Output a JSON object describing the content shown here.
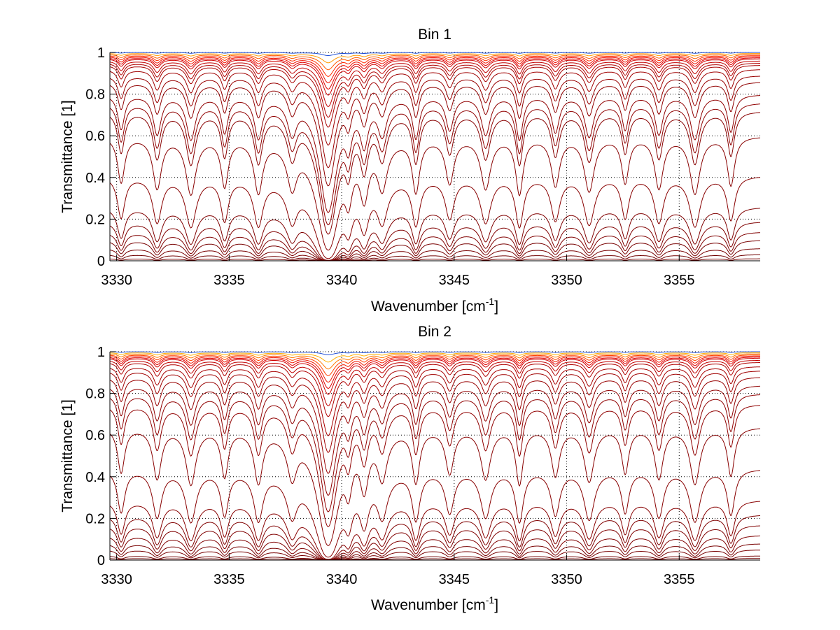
{
  "chart_data": [
    {
      "type": "line",
      "title": "Bin 1",
      "xlabel": "Wavenumber [cm",
      "xlabel_sup": "-1",
      "xlabel_tail": "]",
      "ylabel": "Transmittance [1]",
      "xlim": [
        3329.7,
        3358.6
      ],
      "ylim": [
        0,
        1
      ],
      "grid": true,
      "xticks": [
        3330,
        3335,
        3340,
        3345,
        3350,
        3355
      ],
      "xtick_labels": [
        "3330",
        "3335",
        "3340",
        "3345",
        "3350",
        "3355"
      ],
      "yticks": [
        0,
        0.2,
        0.4,
        0.6,
        0.8,
        1
      ],
      "ytick_labels": [
        "0",
        "0.2",
        "0.4",
        "0.6",
        "0.8",
        "1"
      ],
      "spectrum": {
        "x_points": [
          3330,
          3332,
          3334,
          3336,
          3338,
          3340,
          3342,
          3344,
          3346,
          3348,
          3350,
          3352,
          3354,
          3356,
          3358.5
        ],
        "strong_line_center": 3339.4,
        "absorption_lines": [
          3330.2,
          3331.8,
          3333.3,
          3334.8,
          3336.3,
          3337.8,
          3340.3,
          3341.0,
          3341.8,
          3343.3,
          3344.8,
          3346.4,
          3347.9,
          3349.5,
          3351.0,
          3352.6,
          3354.1,
          3355.7,
          3357.3
        ]
      },
      "series": [
        {
          "baseline": 1.0,
          "color": "#1f4fd6"
        },
        {
          "baseline": 0.995,
          "color": "#ff9a00"
        },
        {
          "baseline": 0.99,
          "color": "#ff5a00"
        },
        {
          "baseline": 0.985,
          "color": "#ff2a00"
        },
        {
          "baseline": 0.98,
          "color": "#f01000"
        },
        {
          "baseline": 0.975,
          "color": "#e00000"
        },
        {
          "baseline": 0.97,
          "color": "#d00000"
        },
        {
          "baseline": 0.96,
          "color": "#c00000"
        },
        {
          "baseline": 0.95,
          "color": "#b00000"
        },
        {
          "baseline": 0.94,
          "color": "#a80000"
        },
        {
          "baseline": 0.92,
          "color": "#a00000"
        },
        {
          "baseline": 0.89,
          "color": "#980000"
        },
        {
          "baseline": 0.86,
          "color": "#900000"
        },
        {
          "baseline": 0.8,
          "color": "#900000"
        },
        {
          "baseline": 0.76,
          "color": "#900000"
        },
        {
          "baseline": 0.72,
          "color": "#880000"
        },
        {
          "baseline": 0.6,
          "color": "#880000"
        },
        {
          "baseline": 0.41,
          "color": "#880000"
        },
        {
          "baseline": 0.26,
          "color": "#800000"
        },
        {
          "baseline": 0.19,
          "color": "#800000"
        },
        {
          "baseline": 0.14,
          "color": "#800000"
        },
        {
          "baseline": 0.1,
          "color": "#780000"
        },
        {
          "baseline": 0.06,
          "color": "#780000"
        },
        {
          "baseline": 0.03,
          "color": "#700000"
        },
        {
          "baseline": 0.01,
          "color": "#700000"
        }
      ]
    },
    {
      "type": "line",
      "title": "Bin 2",
      "xlabel": "Wavenumber [cm",
      "xlabel_sup": "-1",
      "xlabel_tail": "]",
      "ylabel": "Transmittance [1]",
      "xlim": [
        3329.7,
        3358.6
      ],
      "ylim": [
        0,
        1
      ],
      "grid": true,
      "xticks": [
        3330,
        3335,
        3340,
        3345,
        3350,
        3355
      ],
      "xtick_labels": [
        "3330",
        "3335",
        "3340",
        "3345",
        "3350",
        "3355"
      ],
      "yticks": [
        0,
        0.2,
        0.4,
        0.6,
        0.8,
        1
      ],
      "ytick_labels": [
        "0",
        "0.2",
        "0.4",
        "0.6",
        "0.8",
        "1"
      ],
      "spectrum": {
        "x_points": [
          3330,
          3332,
          3334,
          3336,
          3338,
          3340,
          3342,
          3344,
          3346,
          3348,
          3350,
          3352,
          3354,
          3356,
          3358.5
        ],
        "strong_line_center": 3339.4,
        "absorption_lines": [
          3330.2,
          3331.8,
          3333.3,
          3334.8,
          3336.3,
          3337.8,
          3340.3,
          3341.0,
          3341.8,
          3343.3,
          3344.8,
          3346.4,
          3347.9,
          3349.5,
          3351.0,
          3352.6,
          3354.1,
          3355.7,
          3357.3
        ]
      },
      "series": [
        {
          "baseline": 1.0,
          "color": "#1f4fd6"
        },
        {
          "baseline": 0.995,
          "color": "#ffb000"
        },
        {
          "baseline": 0.99,
          "color": "#ff7a00"
        },
        {
          "baseline": 0.985,
          "color": "#ff4000"
        },
        {
          "baseline": 0.98,
          "color": "#f01800"
        },
        {
          "baseline": 0.975,
          "color": "#e00000"
        },
        {
          "baseline": 0.97,
          "color": "#d00000"
        },
        {
          "baseline": 0.96,
          "color": "#c00000"
        },
        {
          "baseline": 0.95,
          "color": "#b00000"
        },
        {
          "baseline": 0.93,
          "color": "#a80000"
        },
        {
          "baseline": 0.91,
          "color": "#a00000"
        },
        {
          "baseline": 0.88,
          "color": "#980000"
        },
        {
          "baseline": 0.84,
          "color": "#900000"
        },
        {
          "baseline": 0.8,
          "color": "#900000"
        },
        {
          "baseline": 0.75,
          "color": "#900000"
        },
        {
          "baseline": 0.64,
          "color": "#880000"
        },
        {
          "baseline": 0.44,
          "color": "#880000"
        },
        {
          "baseline": 0.29,
          "color": "#880000"
        },
        {
          "baseline": 0.22,
          "color": "#800000"
        },
        {
          "baseline": 0.17,
          "color": "#800000"
        },
        {
          "baseline": 0.12,
          "color": "#800000"
        },
        {
          "baseline": 0.08,
          "color": "#780000"
        },
        {
          "baseline": 0.05,
          "color": "#780000"
        },
        {
          "baseline": 0.02,
          "color": "#700000"
        },
        {
          "baseline": 0.008,
          "color": "#700000"
        }
      ]
    }
  ]
}
